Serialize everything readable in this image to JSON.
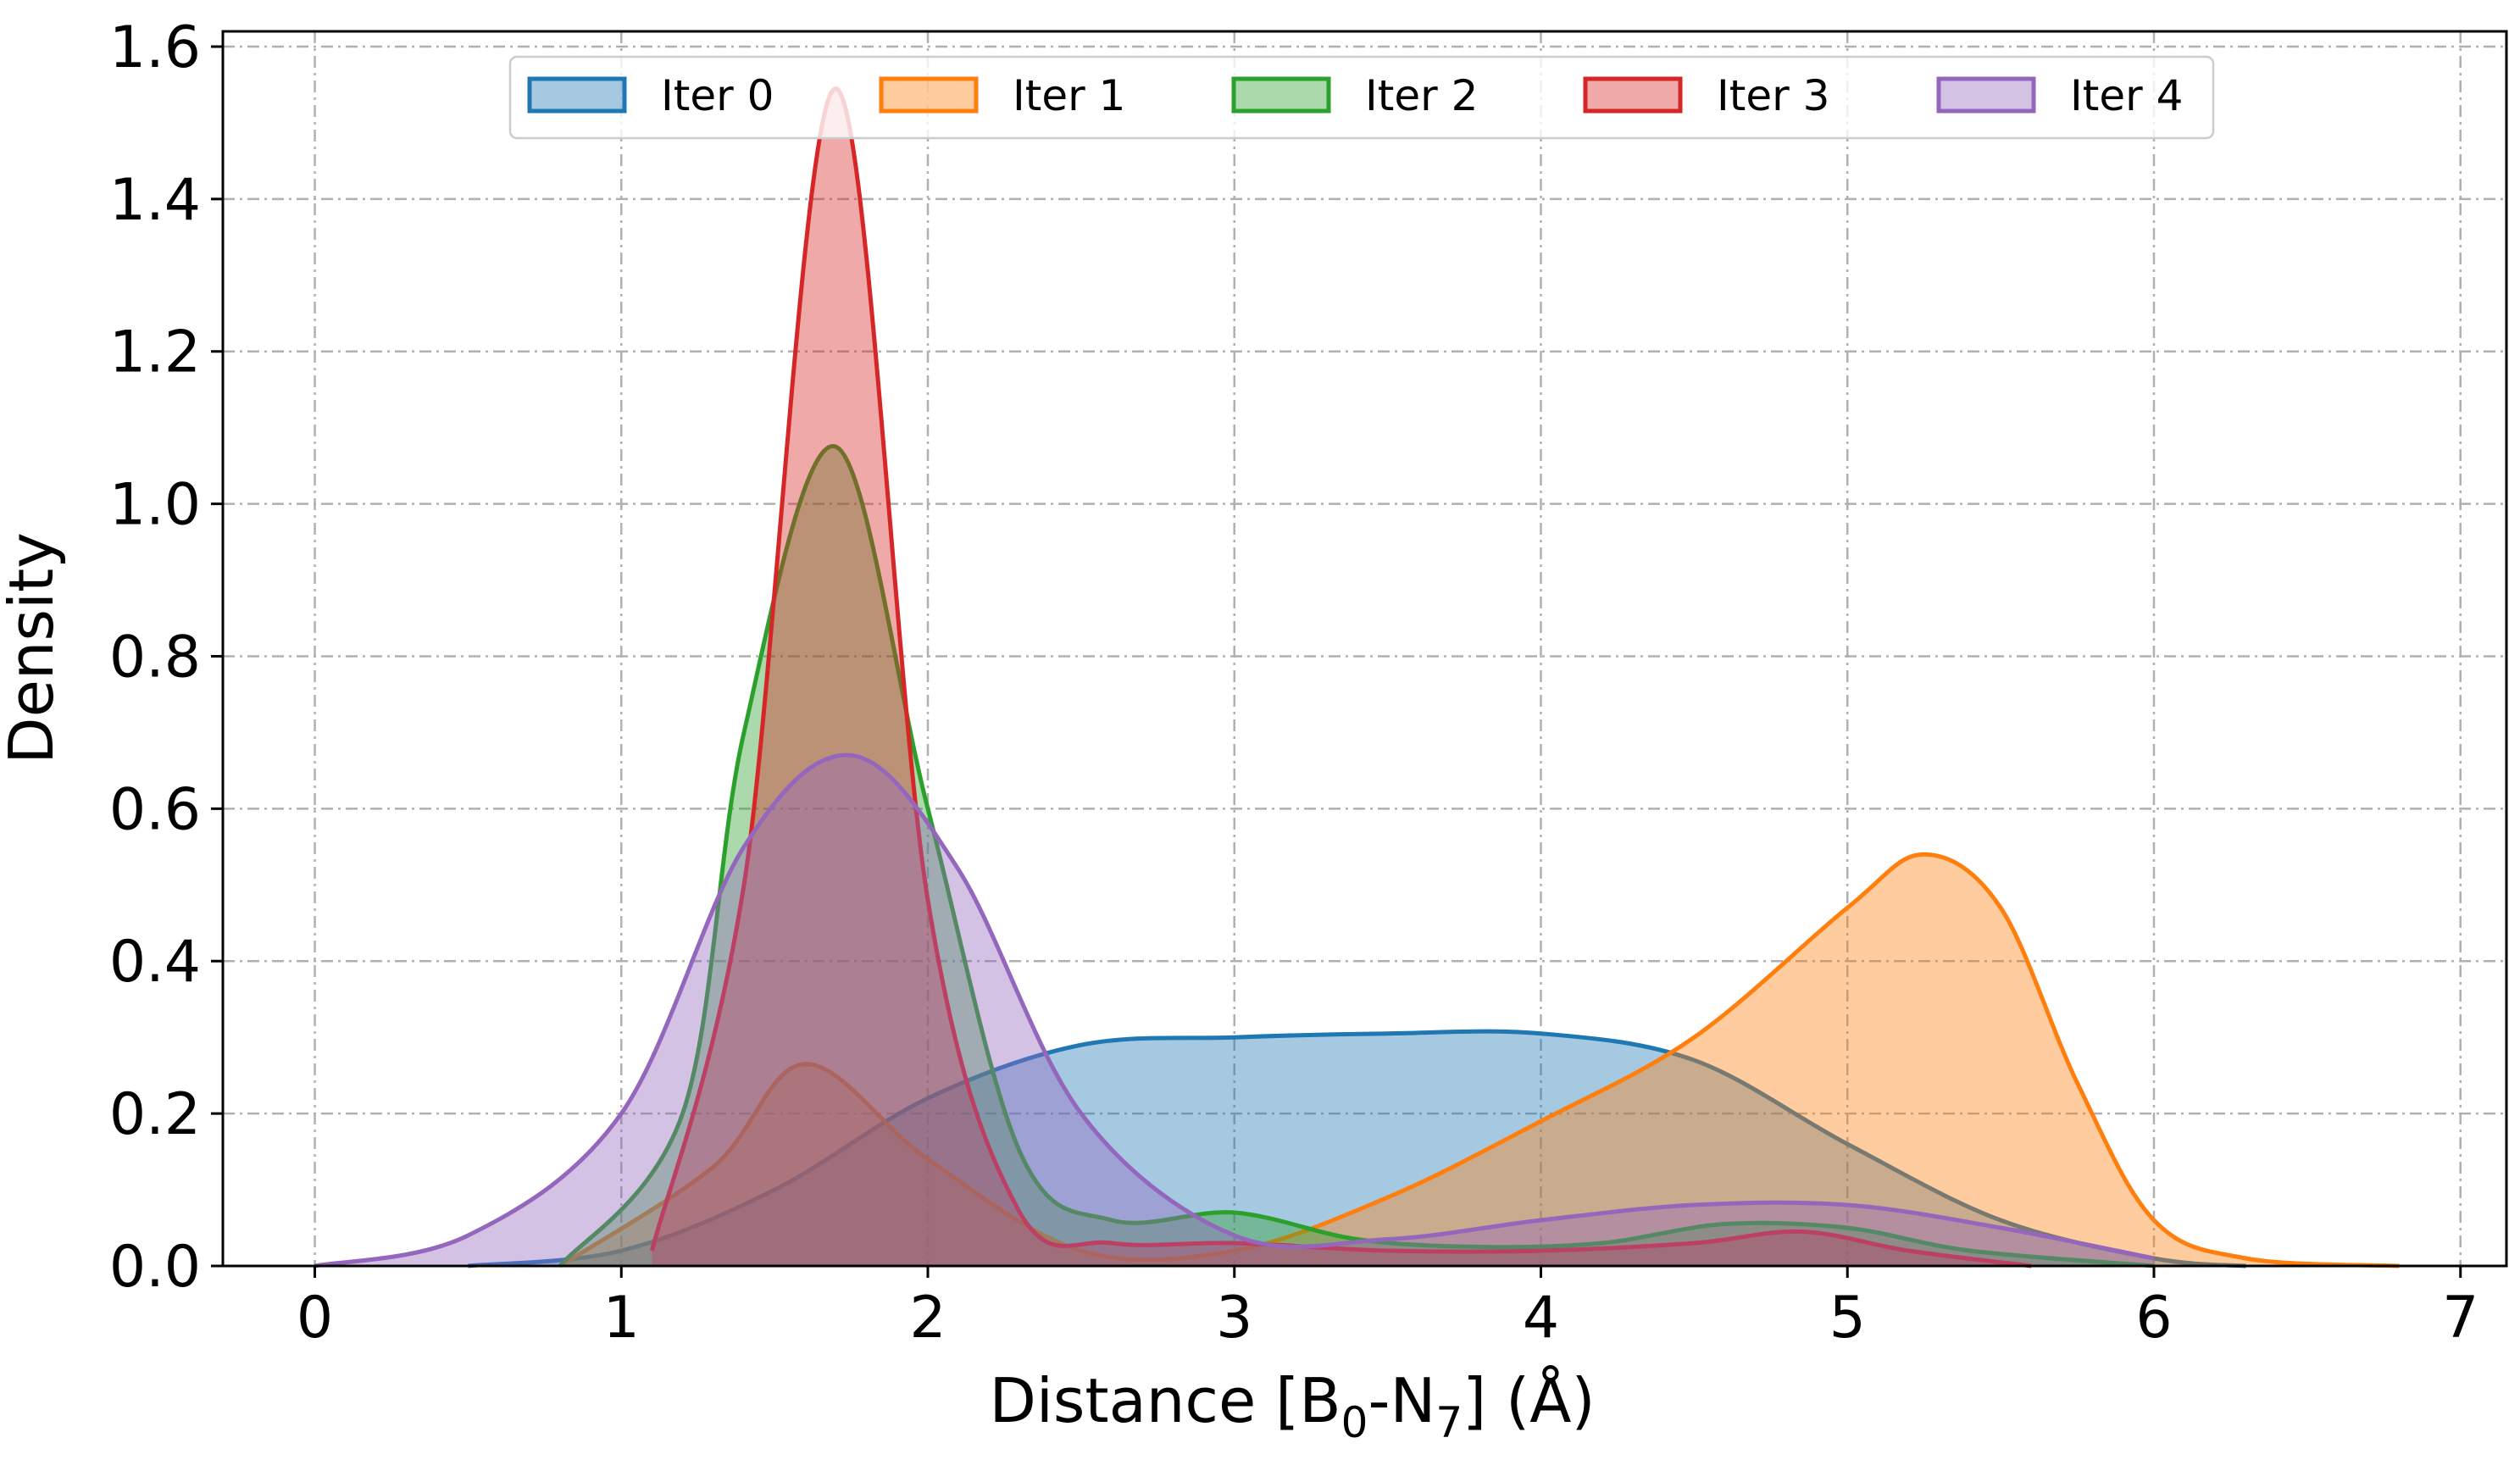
{
  "chart_data": {
    "type": "area",
    "xlabel_main": "Distance [B",
    "xlabel_sub1": "0",
    "xlabel_mid": "-N",
    "xlabel_sub2": "7",
    "xlabel_tail": "] (Å)",
    "ylabel": "Density",
    "xlim": [
      -0.3,
      7.15
    ],
    "ylim": [
      0,
      1.62
    ],
    "xticks": [
      0,
      1,
      2,
      3,
      4,
      5,
      6,
      7
    ],
    "xtick_labels": [
      "0",
      "1",
      "2",
      "3",
      "4",
      "5",
      "6",
      "7"
    ],
    "yticks": [
      0,
      0.2,
      0.4,
      0.6,
      0.8,
      1.0,
      1.2,
      1.4,
      1.6
    ],
    "ytick_labels": [
      "0.0",
      "0.2",
      "0.4",
      "0.6",
      "0.8",
      "1.0",
      "1.2",
      "1.4",
      "1.6"
    ],
    "grid": true,
    "legend_position": "top-center",
    "series": [
      {
        "name": "Iter 0",
        "color": "#1f77b4",
        "x": [
          0.5,
          1.0,
          1.5,
          2.0,
          2.5,
          3.0,
          3.5,
          4.0,
          4.5,
          5.0,
          5.5,
          6.0,
          6.3
        ],
        "y": [
          0.0,
          0.02,
          0.1,
          0.22,
          0.29,
          0.3,
          0.305,
          0.305,
          0.27,
          0.16,
          0.06,
          0.01,
          0.0
        ]
      },
      {
        "name": "Iter 1",
        "color": "#ff7f0e",
        "x": [
          0.8,
          1.3,
          1.6,
          2.0,
          2.5,
          3.0,
          3.5,
          4.0,
          4.5,
          5.0,
          5.25,
          5.5,
          5.75,
          6.0,
          6.3,
          6.8
        ],
        "y": [
          0.0,
          0.13,
          0.265,
          0.14,
          0.02,
          0.02,
          0.09,
          0.19,
          0.3,
          0.47,
          0.54,
          0.47,
          0.24,
          0.06,
          0.01,
          0.0
        ]
      },
      {
        "name": "Iter 2",
        "color": "#2ca02c",
        "x": [
          0.8,
          1.2,
          1.4,
          1.7,
          2.0,
          2.3,
          2.6,
          3.0,
          3.4,
          3.8,
          4.2,
          4.6,
          5.0,
          5.4,
          6.0
        ],
        "y": [
          0.0,
          0.2,
          0.7,
          1.075,
          0.6,
          0.15,
          0.06,
          0.07,
          0.035,
          0.025,
          0.03,
          0.055,
          0.05,
          0.02,
          0.0
        ]
      },
      {
        "name": "Iter 3",
        "color": "#d62728",
        "x": [
          1.1,
          1.4,
          1.7,
          2.0,
          2.3,
          2.6,
          3.0,
          3.5,
          4.0,
          4.5,
          4.85,
          5.2,
          5.6
        ],
        "y": [
          0.02,
          0.5,
          1.545,
          0.48,
          0.07,
          0.03,
          0.03,
          0.02,
          0.02,
          0.03,
          0.045,
          0.02,
          0.0
        ]
      },
      {
        "name": "Iter 4",
        "color": "#9467bd",
        "x": [
          0.0,
          0.5,
          1.0,
          1.4,
          1.75,
          2.1,
          2.5,
          3.0,
          3.5,
          4.0,
          4.5,
          5.0,
          5.5,
          6.0
        ],
        "y": [
          0.0,
          0.04,
          0.2,
          0.55,
          0.67,
          0.52,
          0.2,
          0.04,
          0.035,
          0.06,
          0.08,
          0.08,
          0.05,
          0.01
        ]
      }
    ]
  }
}
